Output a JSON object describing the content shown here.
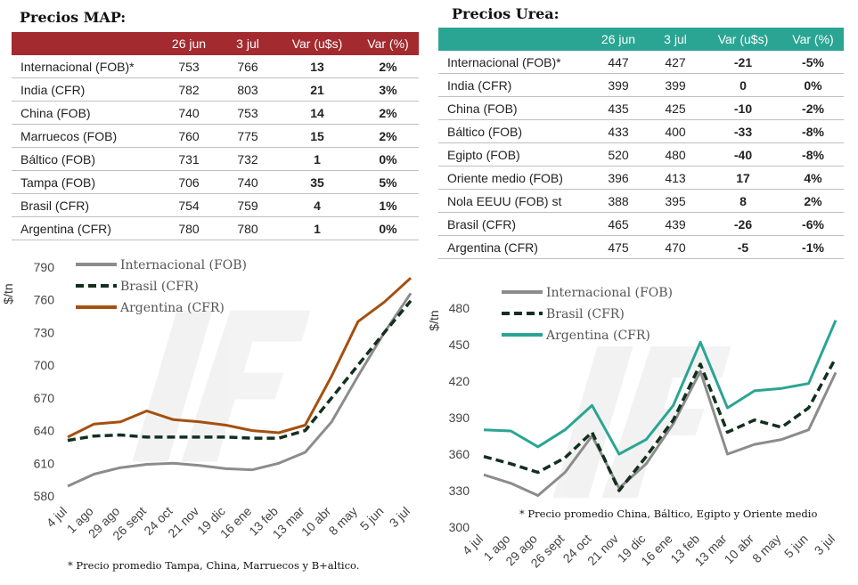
{
  "map": {
    "title": "Precios MAP:",
    "headers": [
      "",
      "26 jun",
      "3 jul",
      "Var (u$s)",
      "Var (%)"
    ],
    "rows": [
      {
        "name": "Internacional (FOB)*",
        "v1": "753",
        "v2": "766",
        "var": "13",
        "pct": "2%"
      },
      {
        "name": "India (CFR)",
        "v1": "782",
        "v2": "803",
        "var": "21",
        "pct": "3%"
      },
      {
        "name": "China (FOB)",
        "v1": "740",
        "v2": "753",
        "var": "14",
        "pct": "2%"
      },
      {
        "name": "Marruecos (FOB)",
        "v1": "760",
        "v2": "775",
        "var": "15",
        "pct": "2%"
      },
      {
        "name": "Báltico (FOB)",
        "v1": "731",
        "v2": "732",
        "var": "1",
        "pct": "0%"
      },
      {
        "name": "Tampa (FOB)",
        "v1": "706",
        "v2": "740",
        "var": "35",
        "pct": "5%"
      },
      {
        "name": "Brasil (CFR)",
        "v1": "754",
        "v2": "759",
        "var": "4",
        "pct": "1%"
      },
      {
        "name": "Argentina (CFR)",
        "v1": "780",
        "v2": "780",
        "var": "1",
        "pct": "0%"
      }
    ],
    "note": "* Precio promedio Tampa, China, Marruecos y B+altico."
  },
  "urea": {
    "title": "Precios Urea:",
    "headers": [
      "",
      "26 jun",
      "3 jul",
      "Var (u$s)",
      "Var (%)"
    ],
    "rows": [
      {
        "name": "Internacional (FOB)*",
        "v1": "447",
        "v2": "427",
        "var": "-21",
        "pct": "-5%"
      },
      {
        "name": "India (CFR)",
        "v1": "399",
        "v2": "399",
        "var": "0",
        "pct": "0%"
      },
      {
        "name": "China (FOB)",
        "v1": "435",
        "v2": "425",
        "var": "-10",
        "pct": "-2%"
      },
      {
        "name": "Báltico (FOB)",
        "v1": "433",
        "v2": "400",
        "var": "-33",
        "pct": "-8%"
      },
      {
        "name": "Egipto (FOB)",
        "v1": "520",
        "v2": "480",
        "var": "-40",
        "pct": "-8%"
      },
      {
        "name": "Oriente medio (FOB)",
        "v1": "396",
        "v2": "413",
        "var": "17",
        "pct": "4%"
      },
      {
        "name": "Nola EEUU (FOB) st",
        "v1": "388",
        "v2": "395",
        "var": "8",
        "pct": "2%"
      },
      {
        "name": "Brasil (CFR)",
        "v1": "465",
        "v2": "439",
        "var": "-26",
        "pct": "-6%"
      },
      {
        "name": "Argentina (CFR)",
        "v1": "475",
        "v2": "470",
        "var": "-5",
        "pct": "-1%"
      }
    ],
    "note": "* Precio promedio China, Báltico, Egipto y Oriente medio"
  },
  "colors": {
    "map_header": "#a32a2f",
    "urea_header": "#2aa593",
    "positive": "#0f6653",
    "negative": "#a3461f",
    "internacional": "#8c8c8c",
    "brasil": "#12301e",
    "argentina_map": "#a5500f",
    "argentina_urea": "#2aa593"
  },
  "chart_data": [
    {
      "type": "line",
      "ylabel": "$/tn",
      "ylim": [
        580,
        790
      ],
      "yticks": [
        580,
        610,
        640,
        670,
        700,
        730,
        760,
        790
      ],
      "categories": [
        "4 jul",
        "1 ago",
        "29 ago",
        "26 sept",
        "24 oct",
        "21 nov",
        "19 dic",
        "16 ene",
        "13 feb",
        "13 mar",
        "10 abr",
        "8 may",
        "5 jun",
        "3 jul"
      ],
      "legend": [
        "Internacional (FOB)",
        "Brasil (CFR)",
        "Argentina (CFR)"
      ],
      "series": [
        {
          "name": "Internacional (FOB)",
          "style": "solid",
          "color": "#8c8c8c",
          "values": [
            589,
            600,
            606,
            609,
            610,
            608,
            605,
            604,
            610,
            620,
            648,
            690,
            730,
            766
          ]
        },
        {
          "name": "Brasil (CFR)",
          "style": "dashed",
          "color": "#12301e",
          "values": [
            631,
            635,
            636,
            634,
            634,
            634,
            634,
            633,
            633,
            640,
            670,
            700,
            730,
            759
          ]
        },
        {
          "name": "Argentina (CFR)",
          "style": "solid",
          "color": "#a5500f",
          "values": [
            634,
            646,
            648,
            658,
            650,
            648,
            645,
            640,
            638,
            645,
            690,
            740,
            758,
            780
          ]
        }
      ]
    },
    {
      "type": "line",
      "ylabel": "$/tn",
      "ylim": [
        300,
        480
      ],
      "yticks": [
        300,
        330,
        360,
        390,
        420,
        450,
        480
      ],
      "categories": [
        "4 jul",
        "1 ago",
        "29 ago",
        "26 sept",
        "24 oct",
        "21 nov",
        "19 dic",
        "16 ene",
        "13 feb",
        "13 mar",
        "10 abr",
        "8 may",
        "5 jun",
        "3 jul"
      ],
      "legend": [
        "Internacional (FOB)",
        "Brasil (CFR)",
        "Argentina (CFR)"
      ],
      "series": [
        {
          "name": "Internacional (FOB)",
          "style": "solid",
          "color": "#8c8c8c",
          "values": [
            343,
            336,
            326,
            345,
            375,
            332,
            352,
            385,
            428,
            360,
            368,
            372,
            380,
            427
          ]
        },
        {
          "name": "Brasil (CFR)",
          "style": "dashed",
          "color": "#12301e",
          "values": [
            358,
            352,
            345,
            357,
            378,
            330,
            358,
            388,
            434,
            378,
            388,
            382,
            398,
            439
          ]
        },
        {
          "name": "Argentina (CFR)",
          "style": "solid",
          "color": "#2aa593",
          "values": [
            380,
            379,
            366,
            380,
            400,
            360,
            372,
            400,
            452,
            398,
            412,
            414,
            418,
            470
          ]
        }
      ]
    }
  ]
}
